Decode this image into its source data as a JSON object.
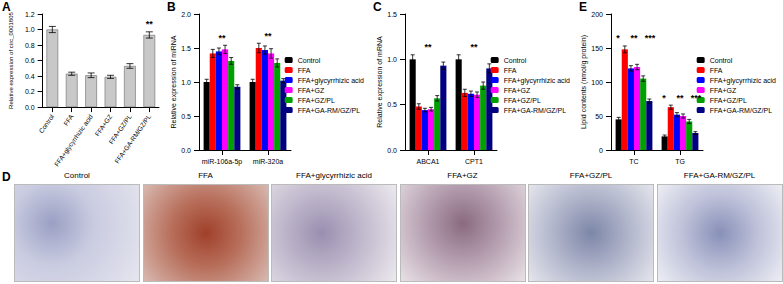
{
  "chart_data": [
    {
      "panel": "A",
      "type": "bar",
      "ylabel": "Relative expression of circ_0001805",
      "categories": [
        "Control",
        "FFA",
        "FFA+glycyrrhizic acid",
        "FFA+GZ",
        "FFA+GZ/PL",
        "FFA+GA-RM/GZ/PL"
      ],
      "values": [
        1.0,
        0.43,
        0.41,
        0.39,
        0.53,
        0.93
      ],
      "errors": [
        0.04,
        0.02,
        0.03,
        0.02,
        0.03,
        0.04
      ],
      "color": "#c8c8c8",
      "ylim": [
        0,
        1.2
      ],
      "yticks": [
        {
          "value": 0,
          "label": "0.0"
        },
        {
          "value": 0.2,
          "label": "0.2"
        },
        {
          "value": 0.4,
          "label": "0.4"
        },
        {
          "value": 0.6,
          "label": "0.6"
        },
        {
          "value": 0.8,
          "label": "0.8"
        },
        {
          "value": 1.0,
          "label": "1.0"
        },
        {
          "value": 1.2,
          "label": "1.2"
        }
      ],
      "grid": false,
      "annotations": [
        {
          "category": "FFA+GA-RM/GZ/PL",
          "text": "**"
        }
      ]
    },
    {
      "panel": "B",
      "type": "bar",
      "ylabel": "Relative expression of miRNA",
      "categories": [
        "miR-106a-5p",
        "miR-320a"
      ],
      "series": [
        {
          "name": "Control",
          "color": "#000000",
          "values": [
            1.0,
            1.0
          ],
          "errors": [
            0.04,
            0.04
          ]
        },
        {
          "name": "FFA",
          "color": "#ff0000",
          "values": [
            1.42,
            1.5
          ],
          "errors": [
            0.06,
            0.07
          ]
        },
        {
          "name": "FFA+glycyrrhizic acid",
          "color": "#0000ff",
          "values": [
            1.45,
            1.47
          ],
          "errors": [
            0.05,
            0.06
          ]
        },
        {
          "name": "FFA+GZ",
          "color": "#ff00ff",
          "values": [
            1.48,
            1.42
          ],
          "errors": [
            0.06,
            0.07
          ]
        },
        {
          "name": "FFA+GZ/PL",
          "color": "#00a000",
          "values": [
            1.31,
            1.28
          ],
          "errors": [
            0.05,
            0.06
          ]
        },
        {
          "name": "FFA+GA-RM/GZ/PL",
          "color": "#000080",
          "values": [
            0.93,
            1.02
          ],
          "errors": [
            0.03,
            0.03
          ]
        }
      ],
      "ylim": [
        0,
        2.0
      ],
      "yticks": [
        {
          "value": 0,
          "label": "0.0"
        },
        {
          "value": 0.5,
          "label": "0.5"
        },
        {
          "value": 1.0,
          "label": "1.0"
        },
        {
          "value": 1.5,
          "label": "1.5"
        },
        {
          "value": 2.0,
          "label": "2.0"
        }
      ],
      "grid": false,
      "legend": "right",
      "annotations": [
        {
          "category": "miR-106a-5p",
          "text": "**"
        },
        {
          "category": "miR-320a",
          "text": "**"
        }
      ]
    },
    {
      "panel": "C",
      "type": "bar",
      "ylabel": "Relative expression of mRNA",
      "categories": [
        "ABCA1",
        "CPT1"
      ],
      "series": [
        {
          "name": "Control",
          "color": "#000000",
          "values": [
            1.0,
            1.0
          ],
          "errors": [
            0.05,
            0.05
          ]
        },
        {
          "name": "FFA",
          "color": "#ff0000",
          "values": [
            0.48,
            0.63
          ],
          "errors": [
            0.03,
            0.04
          ]
        },
        {
          "name": "FFA+glycyrrhizic acid",
          "color": "#0000ff",
          "values": [
            0.44,
            0.62
          ],
          "errors": [
            0.02,
            0.03
          ]
        },
        {
          "name": "FFA+GZ",
          "color": "#ff00ff",
          "values": [
            0.45,
            0.61
          ],
          "errors": [
            0.02,
            0.03
          ]
        },
        {
          "name": "FFA+GZ/PL",
          "color": "#00a000",
          "values": [
            0.57,
            0.71
          ],
          "errors": [
            0.03,
            0.04
          ]
        },
        {
          "name": "FFA+GA-RM/GZ/PL",
          "color": "#000080",
          "values": [
            0.93,
            0.9
          ],
          "errors": [
            0.04,
            0.05
          ]
        }
      ],
      "ylim": [
        0,
        1.5
      ],
      "yticks": [
        {
          "value": 0,
          "label": "0.0"
        },
        {
          "value": 0.5,
          "label": "0.5"
        },
        {
          "value": 1.0,
          "label": "1.0"
        },
        {
          "value": 1.5,
          "label": "1.5"
        }
      ],
      "grid": false,
      "legend": "right",
      "annotations": [
        {
          "category": "ABCA1",
          "text": "**"
        },
        {
          "category": "CPT1",
          "text": "**"
        }
      ]
    },
    {
      "panel": "E",
      "type": "bar",
      "ylabel": "Lipid contents (nmol/g protein)",
      "categories": [
        "TC",
        "TG"
      ],
      "series": [
        {
          "name": "Control",
          "color": "#000000",
          "values": [
            45,
            20
          ],
          "errors": [
            3,
            2
          ]
        },
        {
          "name": "FFA",
          "color": "#ff0000",
          "values": [
            148,
            63
          ],
          "errors": [
            5,
            3
          ]
        },
        {
          "name": "FFA+glycyrrhizic acid",
          "color": "#0000ff",
          "values": [
            120,
            52
          ],
          "errors": [
            4,
            3
          ]
        },
        {
          "name": "FFA+GZ",
          "color": "#ff00ff",
          "values": [
            122,
            50
          ],
          "errors": [
            4,
            3
          ]
        },
        {
          "name": "FFA+GZ/PL",
          "color": "#00a000",
          "values": [
            105,
            42
          ],
          "errors": [
            4,
            3
          ]
        },
        {
          "name": "FFA+GA-RM/GZ/PL",
          "color": "#000080",
          "values": [
            72,
            25
          ],
          "errors": [
            3,
            2
          ]
        }
      ],
      "ylim": [
        0,
        200
      ],
      "yticks": [
        0,
        50,
        100,
        150,
        200
      ],
      "grid": false,
      "legend": "right",
      "annotations": [
        {
          "category": "TC",
          "text": "*"
        },
        {
          "category": "TC",
          "text": "**"
        },
        {
          "category": "TC",
          "text": "***"
        },
        {
          "category": "TG",
          "text": "*"
        },
        {
          "category": "TG",
          "text": "**"
        },
        {
          "category": "TG",
          "text": "***"
        }
      ]
    }
  ],
  "images": {
    "panel": "D",
    "captions": [
      "Control",
      "FFA",
      "FFA+glycyrrhizic acid",
      "FFA+GZ",
      "FFA+GZ/PL",
      "FFA+GA-RM/GZ/PL"
    ]
  }
}
